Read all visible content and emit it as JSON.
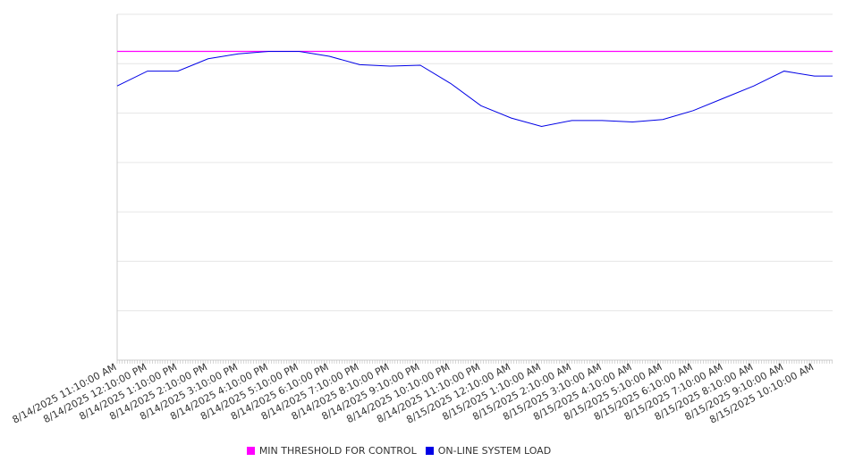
{
  "chart_data": {
    "type": "line",
    "title": "",
    "xlabel": "",
    "ylabel": "",
    "ylim": [
      0,
      7
    ],
    "grid": true,
    "legend_position": "bottom",
    "x_ticks": [
      "8/14/2025 11:10:00 AM",
      "8/14/2025 12:10:00 PM",
      "8/14/2025 1:10:00 PM",
      "8/14/2025 2:10:00 PM",
      "8/14/2025 3:10:00 PM",
      "8/14/2025 4:10:00 PM",
      "8/14/2025 5:10:00 PM",
      "8/14/2025 6:10:00 PM",
      "8/14/2025 7:10:00 PM",
      "8/14/2025 8:10:00 PM",
      "8/14/2025 9:10:00 PM",
      "8/14/2025 10:10:00 PM",
      "8/14/2025 11:10:00 PM",
      "8/15/2025 12:10:00 AM",
      "8/15/2025 1:10:00 AM",
      "8/15/2025 2:10:00 AM",
      "8/15/2025 3:10:00 AM",
      "8/15/2025 4:10:00 AM",
      "8/15/2025 5:10:00 AM",
      "8/15/2025 6:10:00 AM",
      "8/15/2025 7:10:00 AM",
      "8/15/2025 8:10:00 AM",
      "8/15/2025 9:10:00 AM",
      "8/15/2025 10:10:00 AM"
    ],
    "series": [
      {
        "name": "MIN THRESHOLD FOR CONTROL",
        "color": "#ff00ff",
        "values": [
          6.25,
          6.25,
          6.25,
          6.25,
          6.25,
          6.25,
          6.25,
          6.25,
          6.25,
          6.25,
          6.25,
          6.25,
          6.25,
          6.25,
          6.25,
          6.25,
          6.25,
          6.25,
          6.25,
          6.25,
          6.25,
          6.25,
          6.25,
          6.25
        ]
      },
      {
        "name": "ON-LINE SYSTEM LOAD",
        "color": "#0000e6",
        "values": [
          5.55,
          5.85,
          5.85,
          6.1,
          6.2,
          6.25,
          6.25,
          6.15,
          5.98,
          5.95,
          5.97,
          5.6,
          5.15,
          4.9,
          4.73,
          4.85,
          4.85,
          4.82,
          4.87,
          5.05,
          5.3,
          5.55,
          5.85,
          5.75
        ]
      }
    ]
  },
  "legend": [
    {
      "label": "MIN THRESHOLD FOR CONTROL",
      "color": "#ff00ff"
    },
    {
      "label": "ON-LINE SYSTEM LOAD",
      "color": "#0000e6"
    }
  ]
}
